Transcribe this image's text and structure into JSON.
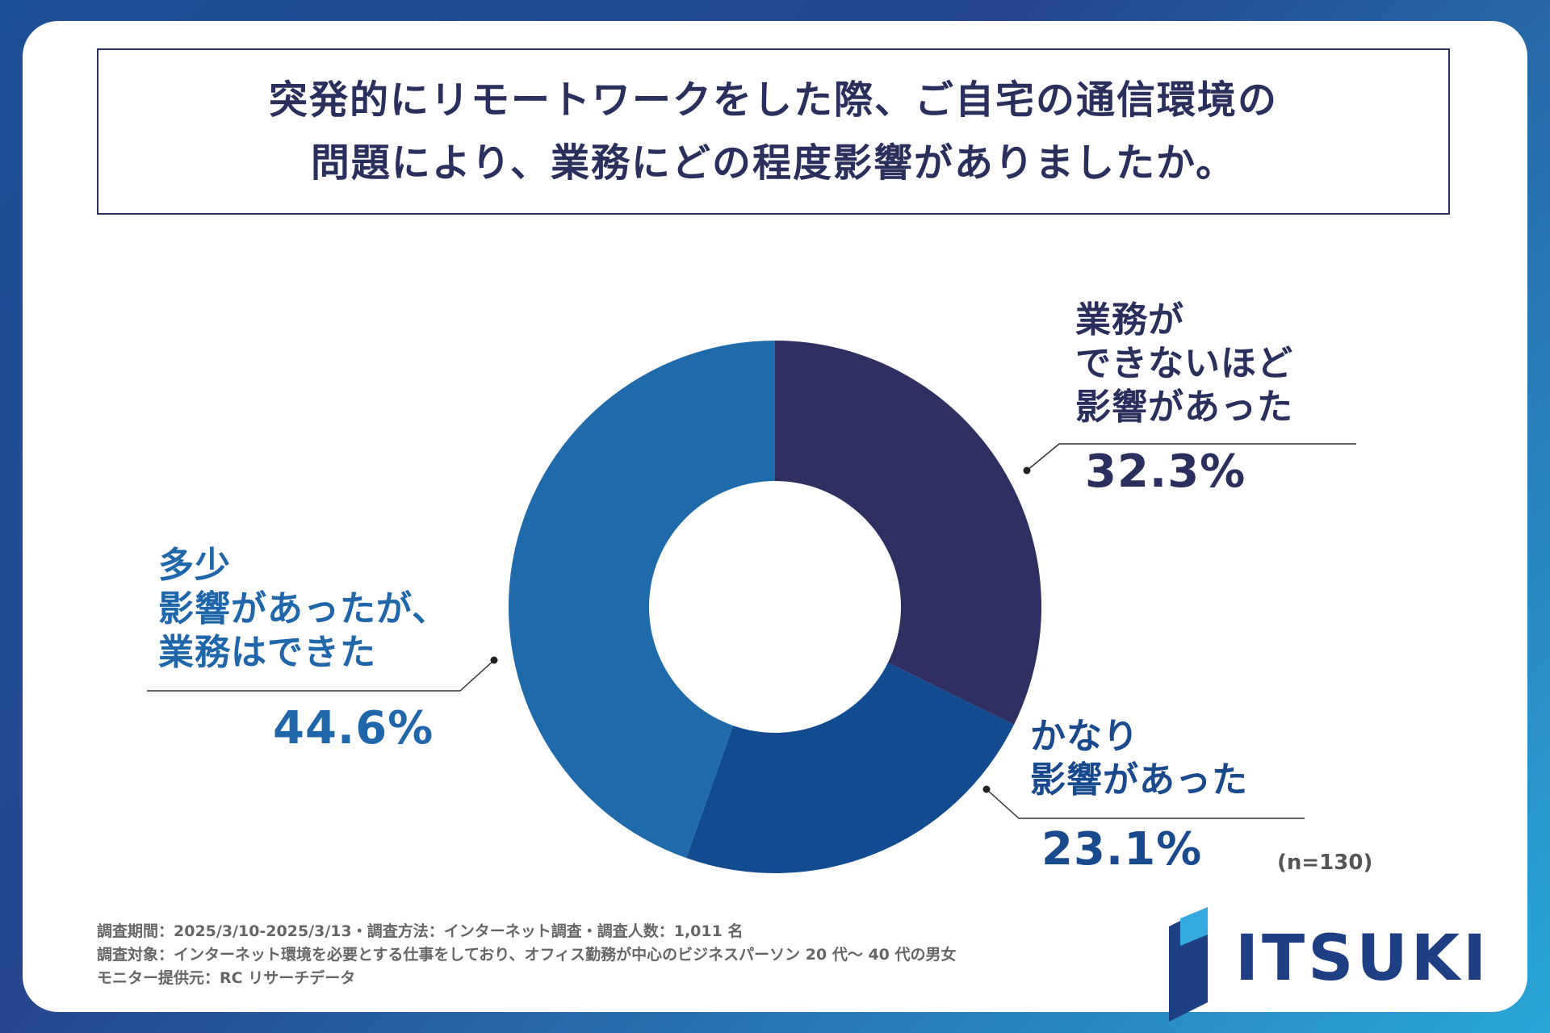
{
  "title": {
    "line1": "突発的にリモートワークをした際、ご自宅の通信環境の",
    "line2": "問題により、業務にどの程度影響がありましたか。"
  },
  "chart_data": {
    "type": "pie",
    "variant": "donut",
    "start_angle_deg": 0,
    "sample_size": "(n=130)",
    "slices": [
      {
        "label_lines": [
          "業務が",
          "できないほど",
          "影響があった"
        ],
        "value": 32.3,
        "display": "32.3%",
        "color": "#2f2f62",
        "label_color": "#2b2f5e"
      },
      {
        "label_lines": [
          "かなり",
          "影響があった"
        ],
        "value": 23.1,
        "display": "23.1%",
        "color": "#124b90",
        "label_color": "#1a4a8e"
      },
      {
        "label_lines": [
          "多少",
          "影響があったが、",
          "業務はできた"
        ],
        "value": 44.6,
        "display": "44.6%",
        "color": "#1f6aab",
        "label_color": "#1f66aa"
      }
    ]
  },
  "footnotes": [
    "調査期間：2025/3/10-2025/3/13・調査方法：インターネット調査・調査人数：1,011 名",
    "調査対象：インターネット環境を必要とする仕事をしており、オフィス勤務が中心のビジネスパーソン 20 代～ 40 代の男女",
    "モニター提供元：RC リサーチデータ"
  ],
  "logo": {
    "text": "ITSUKI",
    "color": "#1f3f84"
  }
}
